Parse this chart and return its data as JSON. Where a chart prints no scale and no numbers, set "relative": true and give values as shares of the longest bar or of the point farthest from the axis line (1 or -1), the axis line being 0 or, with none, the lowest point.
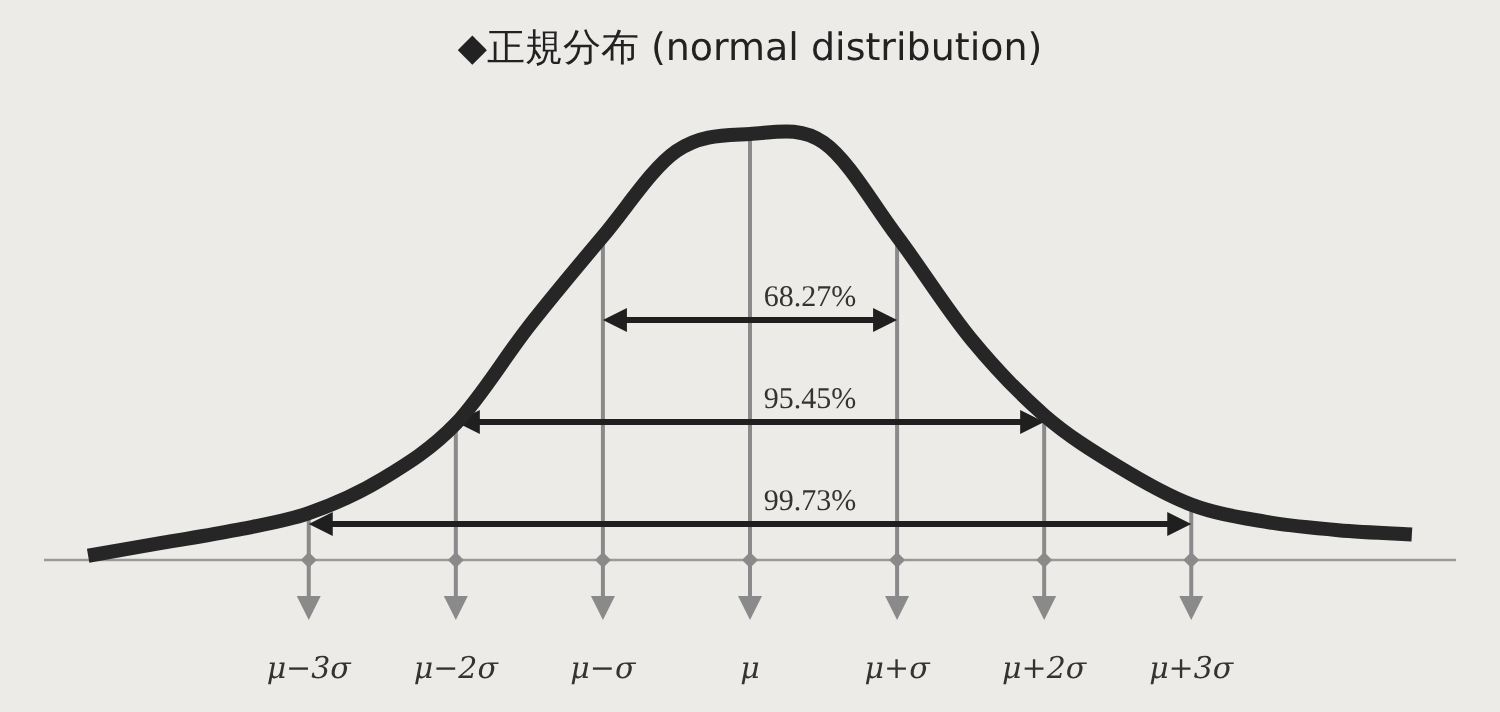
{
  "chart_data": {
    "type": "line",
    "title": "◆正規分布 (normal distribution)",
    "relative": true,
    "categories": [
      null,
      null,
      null,
      "μ−3σ",
      null,
      "μ−2σ",
      null,
      "μ−σ",
      null,
      "μ",
      null,
      "μ+σ",
      null,
      "μ+2σ",
      null,
      "μ+3σ",
      null,
      null,
      null
    ],
    "grid": "x",
    "series": [
      {
        "color": "#262626",
        "values": [
          0.01,
          0.04,
          0.07,
          0.11,
          0.19,
          0.32,
          0.55,
          0.76,
          0.96,
          1,
          0.98,
          0.76,
          0.52,
          0.34,
          0.22,
          0.13,
          0.09,
          0.07,
          0.06
        ]
      }
    ],
    "annotations": [
      "68.27%",
      "95.45%",
      "99.73%"
    ]
  }
}
